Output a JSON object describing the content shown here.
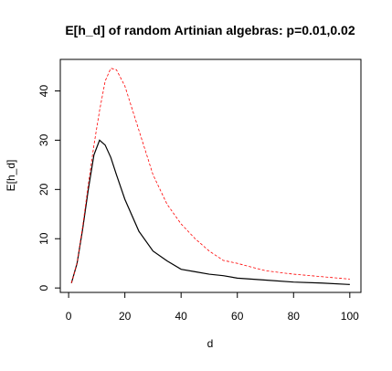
{
  "chart_data": {
    "type": "line",
    "title": "E[h_d] of random Artinian algebras: p=0.01,0.02",
    "xlabel": "d",
    "ylabel": "E[h_d]",
    "x": [
      1,
      3,
      5,
      7,
      9,
      11,
      13,
      15,
      17,
      20,
      25,
      30,
      35,
      40,
      45,
      50,
      55,
      60,
      70,
      80,
      90,
      100
    ],
    "series": [
      {
        "color": "#000000",
        "dash": false,
        "values": [
          1,
          5,
          12,
          20,
          27,
          30,
          29,
          26.5,
          23,
          18,
          11.5,
          7.5,
          5.5,
          3.8,
          3.3,
          2.8,
          2.5,
          2,
          1.6,
          1.2,
          1,
          0.7
        ]
      },
      {
        "color": "#ff0000",
        "dash": true,
        "values": [
          1,
          5,
          12.5,
          21,
          29,
          36,
          42,
          44.6,
          44.3,
          41,
          32,
          23,
          17,
          13,
          10,
          7.5,
          5.6,
          5,
          3.5,
          2.8,
          2.3,
          1.8
        ]
      }
    ],
    "xlim": [
      -2.96,
      103.96
    ],
    "xticks": [
      0,
      20,
      40,
      60,
      80,
      100
    ],
    "ylim": [
      -0.9,
      46.4
    ],
    "yticks": [
      0,
      10,
      20,
      30,
      40
    ]
  }
}
